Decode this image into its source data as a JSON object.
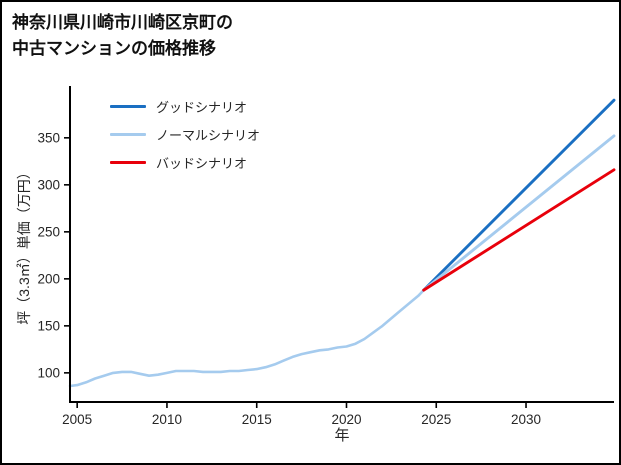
{
  "title": {
    "line1": "神奈川県川崎市川崎区京町の",
    "line2": "中古マンションの価格推移"
  },
  "chart_data": {
    "type": "line",
    "title": "神奈川県川崎市川崎区京町の中古マンションの価格推移",
    "xlabel": "年",
    "ylabel": "坪（3.3㎡）単価（万円）",
    "xlim": [
      2004.6,
      2034.9
    ],
    "ylim": [
      69,
      403
    ],
    "xticks": [
      2005,
      2010,
      2015,
      2020,
      2025,
      2030
    ],
    "yticks": [
      100,
      150,
      200,
      250,
      300,
      350
    ],
    "grid": false,
    "legend_position": "upper-left",
    "colors": {
      "good": "#1a6fc2",
      "normal": "#a5cbee",
      "bad": "#e8000b",
      "axis": "#000000",
      "text": "#262626"
    },
    "legend": [
      {
        "label": "グッドシナリオ",
        "color": "#1a6fc2"
      },
      {
        "label": "ノーマルシナリオ",
        "color": "#a5cbee"
      },
      {
        "label": "バッドシナリオ",
        "color": "#e8000b"
      }
    ],
    "series": [
      {
        "name": "historical",
        "color": "#a5cbee",
        "width": 2.6,
        "x": [
          2004.6,
          2005,
          2005.5,
          2006,
          2006.5,
          2007,
          2007.5,
          2008,
          2008.5,
          2009,
          2009.5,
          2010,
          2010.5,
          2011,
          2011.5,
          2012,
          2012.5,
          2013,
          2013.5,
          2014,
          2014.5,
          2015,
          2015.5,
          2016,
          2016.5,
          2017,
          2017.5,
          2018,
          2018.5,
          2019,
          2019.5,
          2020,
          2020.5,
          2021,
          2021.5,
          2022,
          2022.5,
          2023,
          2023.5,
          2024,
          2024.3
        ],
        "y": [
          86,
          87,
          90,
          94,
          97,
          100,
          101,
          101,
          99,
          97,
          98,
          100,
          102,
          102,
          102,
          101,
          101,
          101,
          102,
          102,
          103,
          104,
          106,
          109,
          113,
          117,
          120,
          122,
          124,
          125,
          127,
          128,
          131,
          136,
          143,
          150,
          158,
          166,
          174,
          182,
          188
        ]
      },
      {
        "name": "good-scenario",
        "color": "#1a6fc2",
        "width": 2.9,
        "x": [
          2024.3,
          2034.9
        ],
        "y": [
          188,
          390
        ]
      },
      {
        "name": "normal-scenario",
        "color": "#a5cbee",
        "width": 2.9,
        "x": [
          2024.3,
          2034.9
        ],
        "y": [
          188,
          352
        ]
      },
      {
        "name": "bad-scenario",
        "color": "#e8000b",
        "width": 2.9,
        "x": [
          2024.3,
          2034.9
        ],
        "y": [
          188,
          316
        ]
      }
    ]
  }
}
